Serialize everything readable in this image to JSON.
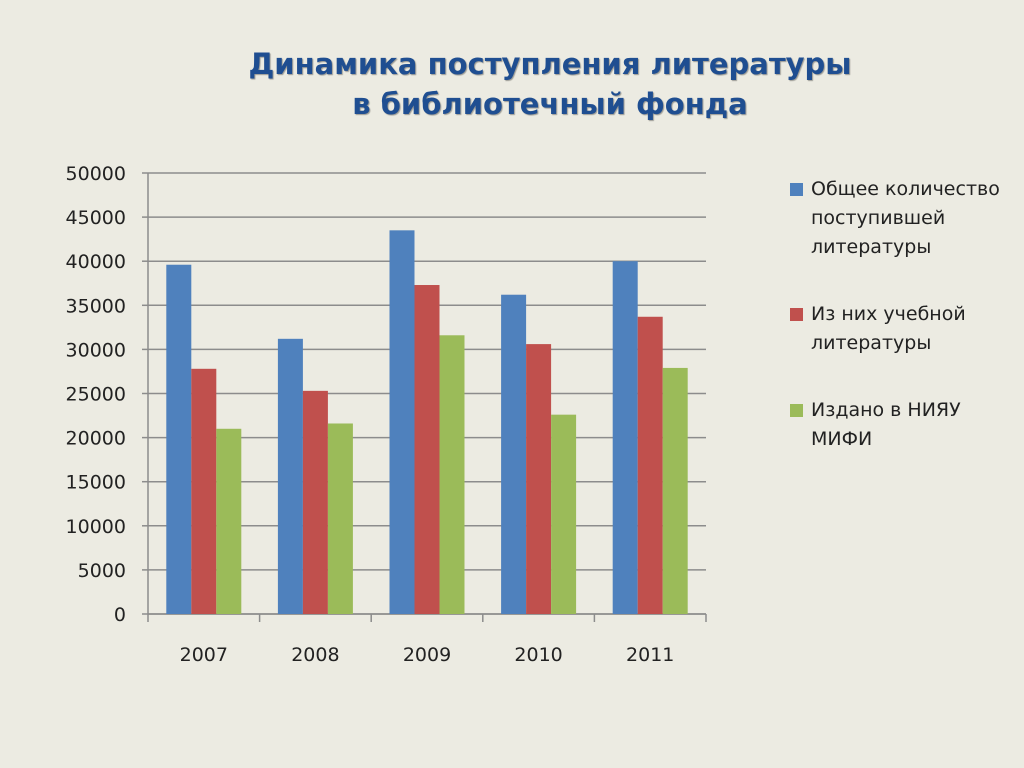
{
  "header": {
    "title_line1": "Динамика поступления литературы",
    "title_line2": "в библиотечный фонда"
  },
  "chart_data": {
    "type": "bar",
    "title": "Динамика поступления литературы в библиотечный фонда",
    "categories": [
      "2007",
      "2008",
      "2009",
      "2010",
      "2011"
    ],
    "series": [
      {
        "name": "Общее количество поступившей литературы",
        "color": "#4f81bd",
        "values": [
          39600,
          31200,
          43500,
          36200,
          40000
        ]
      },
      {
        "name": "Из них учебной литературы",
        "color": "#c0504d",
        "values": [
          27800,
          25300,
          37300,
          30600,
          33700
        ]
      },
      {
        "name": "Издано в НИЯУ МИФИ",
        "color": "#9bbb59",
        "values": [
          21000,
          21600,
          31600,
          22600,
          27900
        ]
      }
    ],
    "ylim": [
      0,
      50000
    ],
    "yticks": [
      "0",
      "5000",
      "10000",
      "15000",
      "20000",
      "25000",
      "30000",
      "35000",
      "40000",
      "45000",
      "50000"
    ],
    "grid": true,
    "legend_position": "right",
    "xlabel": "",
    "ylabel": ""
  }
}
